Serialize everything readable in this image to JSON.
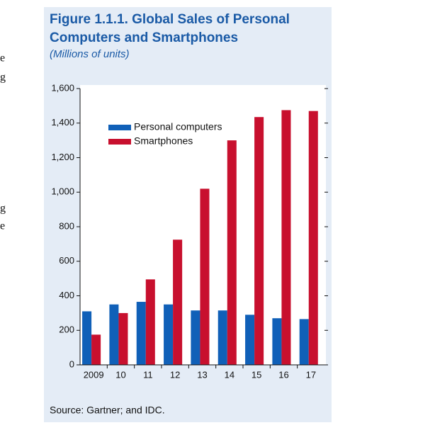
{
  "margin_fragments": [
    "e",
    "g",
    "g",
    "e"
  ],
  "chart_data": {
    "type": "bar",
    "title": [
      "Figure 1.1.1.  Global Sales of Personal",
      "Computers and Smartphones"
    ],
    "subtitle": "(Millions of units)",
    "source": "Source: Gartner; and IDC.",
    "categories": [
      "2009",
      "10",
      "11",
      "12",
      "13",
      "14",
      "15",
      "16",
      "17"
    ],
    "series": [
      {
        "name": "Personal computers",
        "color": "#1060b8",
        "values": [
          310,
          350,
          365,
          350,
          315,
          315,
          290,
          270,
          265
        ]
      },
      {
        "name": "Smartphones",
        "color": "#c8102e",
        "values": [
          175,
          300,
          495,
          725,
          1020,
          1300,
          1435,
          1475,
          1470
        ]
      }
    ],
    "ylim": [
      0,
      1600
    ],
    "yticks": [
      0,
      200,
      400,
      600,
      800,
      {
        "value": 1000,
        "label": "1,000"
      },
      {
        "value": 1200,
        "label": "1,200"
      },
      {
        "value": 1400,
        "label": "1,400"
      },
      {
        "value": 1600,
        "label": "1,600"
      }
    ],
    "legend": "upper left"
  }
}
